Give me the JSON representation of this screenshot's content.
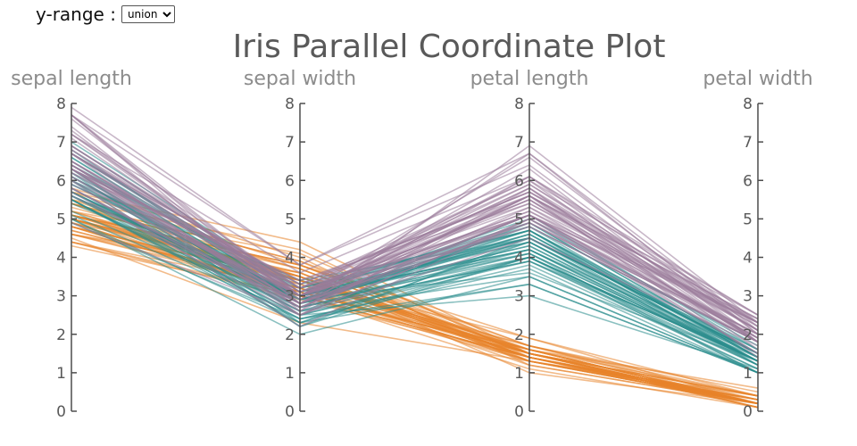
{
  "controls": {
    "label": "y-range :",
    "select_value": "union",
    "options": [
      "union"
    ]
  },
  "colors": {
    "setosa": "#e8832a",
    "versicolor": "#2a8c8c",
    "virginica": "#9b7b9b",
    "axis": "#4d4d4d"
  },
  "chart_data": {
    "type": "parallel-coordinates",
    "title": "Iris Parallel Coordinate Plot",
    "axes": [
      "sepal length",
      "sepal width",
      "petal length",
      "petal width"
    ],
    "ylim": [
      0,
      8
    ],
    "ticks": [
      0,
      1,
      2,
      3,
      4,
      5,
      6,
      7,
      8
    ],
    "series": [
      {
        "values": [
          [
            5.1,
            3.5,
            1.4,
            0.2
          ],
          [
            4.9,
            3.0,
            1.4,
            0.2
          ],
          [
            4.7,
            3.2,
            1.3,
            0.2
          ],
          [
            4.6,
            3.1,
            1.5,
            0.2
          ],
          [
            5.0,
            3.6,
            1.4,
            0.2
          ],
          [
            5.4,
            3.9,
            1.7,
            0.4
          ],
          [
            4.6,
            3.4,
            1.4,
            0.3
          ],
          [
            5.0,
            3.4,
            1.5,
            0.2
          ],
          [
            4.4,
            2.9,
            1.4,
            0.2
          ],
          [
            4.9,
            3.1,
            1.5,
            0.1
          ],
          [
            5.4,
            3.7,
            1.5,
            0.2
          ],
          [
            4.8,
            3.4,
            1.6,
            0.2
          ],
          [
            4.8,
            3.0,
            1.4,
            0.1
          ],
          [
            4.3,
            3.0,
            1.1,
            0.1
          ],
          [
            5.8,
            4.0,
            1.2,
            0.2
          ],
          [
            5.7,
            4.4,
            1.5,
            0.4
          ],
          [
            5.4,
            3.9,
            1.3,
            0.4
          ],
          [
            5.1,
            3.5,
            1.4,
            0.3
          ],
          [
            5.7,
            3.8,
            1.7,
            0.3
          ],
          [
            5.1,
            3.8,
            1.5,
            0.3
          ],
          [
            5.4,
            3.4,
            1.7,
            0.2
          ],
          [
            5.1,
            3.7,
            1.5,
            0.4
          ],
          [
            4.6,
            3.6,
            1.0,
            0.2
          ],
          [
            5.1,
            3.3,
            1.7,
            0.5
          ],
          [
            4.8,
            3.4,
            1.9,
            0.2
          ],
          [
            5.0,
            3.0,
            1.6,
            0.2
          ],
          [
            5.0,
            3.4,
            1.6,
            0.4
          ],
          [
            5.2,
            3.5,
            1.5,
            0.2
          ],
          [
            5.2,
            3.4,
            1.4,
            0.2
          ],
          [
            4.7,
            3.2,
            1.6,
            0.2
          ],
          [
            4.8,
            3.1,
            1.6,
            0.2
          ],
          [
            5.4,
            3.4,
            1.5,
            0.4
          ],
          [
            5.2,
            4.1,
            1.5,
            0.1
          ],
          [
            5.5,
            4.2,
            1.4,
            0.2
          ],
          [
            4.9,
            3.1,
            1.5,
            0.2
          ],
          [
            5.0,
            3.2,
            1.2,
            0.2
          ],
          [
            5.5,
            3.5,
            1.3,
            0.2
          ],
          [
            4.9,
            3.6,
            1.4,
            0.1
          ],
          [
            4.4,
            3.0,
            1.3,
            0.2
          ],
          [
            5.1,
            3.4,
            1.5,
            0.2
          ],
          [
            5.0,
            3.5,
            1.3,
            0.3
          ],
          [
            4.5,
            2.3,
            1.3,
            0.3
          ],
          [
            4.4,
            3.2,
            1.3,
            0.2
          ],
          [
            5.0,
            3.5,
            1.6,
            0.6
          ],
          [
            5.1,
            3.8,
            1.9,
            0.4
          ],
          [
            4.8,
            3.0,
            1.4,
            0.3
          ],
          [
            5.1,
            3.8,
            1.6,
            0.2
          ],
          [
            4.6,
            3.2,
            1.4,
            0.2
          ],
          [
            5.3,
            3.7,
            1.5,
            0.2
          ],
          [
            5.0,
            3.3,
            1.4,
            0.2
          ]
        ]
      },
      {
        "values": [
          [
            7.0,
            3.2,
            4.7,
            1.4
          ],
          [
            6.4,
            3.2,
            4.5,
            1.5
          ],
          [
            6.9,
            3.1,
            4.9,
            1.5
          ],
          [
            5.5,
            2.3,
            4.0,
            1.3
          ],
          [
            6.5,
            2.8,
            4.6,
            1.5
          ],
          [
            5.7,
            2.8,
            4.5,
            1.3
          ],
          [
            6.3,
            3.3,
            4.7,
            1.6
          ],
          [
            4.9,
            2.4,
            3.3,
            1.0
          ],
          [
            6.6,
            2.9,
            4.6,
            1.3
          ],
          [
            5.2,
            2.7,
            3.9,
            1.4
          ],
          [
            5.0,
            2.0,
            3.5,
            1.0
          ],
          [
            5.9,
            3.0,
            4.2,
            1.5
          ],
          [
            6.0,
            2.2,
            4.0,
            1.0
          ],
          [
            6.1,
            2.9,
            4.7,
            1.4
          ],
          [
            5.6,
            2.9,
            3.6,
            1.3
          ],
          [
            6.7,
            3.1,
            4.4,
            1.4
          ],
          [
            5.6,
            3.0,
            4.5,
            1.5
          ],
          [
            5.8,
            2.7,
            4.1,
            1.0
          ],
          [
            6.2,
            2.2,
            4.5,
            1.5
          ],
          [
            5.6,
            2.5,
            3.9,
            1.1
          ],
          [
            5.9,
            3.2,
            4.8,
            1.8
          ],
          [
            6.1,
            2.8,
            4.0,
            1.3
          ],
          [
            6.3,
            2.5,
            4.9,
            1.5
          ],
          [
            6.1,
            2.8,
            4.7,
            1.2
          ],
          [
            6.4,
            2.9,
            4.3,
            1.3
          ],
          [
            6.6,
            3.0,
            4.4,
            1.4
          ],
          [
            6.8,
            2.8,
            4.8,
            1.4
          ],
          [
            6.7,
            3.0,
            5.0,
            1.7
          ],
          [
            6.0,
            2.9,
            4.5,
            1.5
          ],
          [
            5.7,
            2.6,
            3.5,
            1.0
          ],
          [
            5.5,
            2.4,
            3.8,
            1.1
          ],
          [
            5.5,
            2.4,
            3.7,
            1.0
          ],
          [
            5.8,
            2.7,
            3.9,
            1.2
          ],
          [
            6.0,
            2.7,
            5.1,
            1.6
          ],
          [
            5.4,
            3.0,
            4.5,
            1.5
          ],
          [
            6.0,
            3.4,
            4.5,
            1.6
          ],
          [
            6.7,
            3.1,
            4.7,
            1.5
          ],
          [
            6.3,
            2.3,
            4.4,
            1.3
          ],
          [
            5.6,
            3.0,
            4.1,
            1.3
          ],
          [
            5.5,
            2.5,
            4.0,
            1.3
          ],
          [
            5.5,
            2.6,
            4.4,
            1.2
          ],
          [
            6.1,
            3.0,
            4.6,
            1.4
          ],
          [
            5.8,
            2.6,
            4.0,
            1.2
          ],
          [
            5.0,
            2.3,
            3.3,
            1.0
          ],
          [
            5.6,
            2.7,
            4.2,
            1.3
          ],
          [
            5.7,
            3.0,
            4.2,
            1.2
          ],
          [
            5.7,
            2.9,
            4.2,
            1.3
          ],
          [
            6.2,
            2.9,
            4.3,
            1.3
          ],
          [
            5.1,
            2.5,
            3.0,
            1.1
          ],
          [
            5.7,
            2.8,
            4.1,
            1.3
          ]
        ]
      },
      {
        "values": [
          [
            6.3,
            3.3,
            6.0,
            2.5
          ],
          [
            5.8,
            2.7,
            5.1,
            1.9
          ],
          [
            7.1,
            3.0,
            5.9,
            2.1
          ],
          [
            6.3,
            2.9,
            5.6,
            1.8
          ],
          [
            6.5,
            3.0,
            5.8,
            2.2
          ],
          [
            7.6,
            3.0,
            6.6,
            2.1
          ],
          [
            4.9,
            2.5,
            4.5,
            1.7
          ],
          [
            7.3,
            2.9,
            6.3,
            1.8
          ],
          [
            6.7,
            2.5,
            5.8,
            1.8
          ],
          [
            7.2,
            3.6,
            6.1,
            2.5
          ],
          [
            6.5,
            3.2,
            5.1,
            2.0
          ],
          [
            6.4,
            2.7,
            5.3,
            1.9
          ],
          [
            6.8,
            3.0,
            5.5,
            2.1
          ],
          [
            5.7,
            2.5,
            5.0,
            2.0
          ],
          [
            5.8,
            2.8,
            5.1,
            2.4
          ],
          [
            6.4,
            3.2,
            5.3,
            2.3
          ],
          [
            6.5,
            3.0,
            5.5,
            1.8
          ],
          [
            7.7,
            3.8,
            6.7,
            2.2
          ],
          [
            7.7,
            2.6,
            6.9,
            2.3
          ],
          [
            6.0,
            2.2,
            5.0,
            1.5
          ],
          [
            6.9,
            3.2,
            5.7,
            2.3
          ],
          [
            5.6,
            2.8,
            4.9,
            2.0
          ],
          [
            7.7,
            2.8,
            6.7,
            2.0
          ],
          [
            6.3,
            2.7,
            4.9,
            1.8
          ],
          [
            6.7,
            3.3,
            5.7,
            2.1
          ],
          [
            7.2,
            3.2,
            6.0,
            1.8
          ],
          [
            6.2,
            2.8,
            4.8,
            1.8
          ],
          [
            6.1,
            3.0,
            4.9,
            1.8
          ],
          [
            6.4,
            2.8,
            5.6,
            2.1
          ],
          [
            7.2,
            3.0,
            5.8,
            1.6
          ],
          [
            7.4,
            2.8,
            6.1,
            1.9
          ],
          [
            7.9,
            3.8,
            6.4,
            2.0
          ],
          [
            6.4,
            2.8,
            5.6,
            2.2
          ],
          [
            6.3,
            2.8,
            5.1,
            1.5
          ],
          [
            6.1,
            2.6,
            5.6,
            1.4
          ],
          [
            7.7,
            3.0,
            6.1,
            2.3
          ],
          [
            6.3,
            3.4,
            5.6,
            2.4
          ],
          [
            6.4,
            3.1,
            5.5,
            1.8
          ],
          [
            6.0,
            3.0,
            4.8,
            1.8
          ],
          [
            6.9,
            3.1,
            5.4,
            2.1
          ],
          [
            6.7,
            3.1,
            5.6,
            2.4
          ],
          [
            6.9,
            3.1,
            5.1,
            2.3
          ],
          [
            5.8,
            2.7,
            5.1,
            1.9
          ],
          [
            6.8,
            3.2,
            5.9,
            2.3
          ],
          [
            6.7,
            3.3,
            5.7,
            2.5
          ],
          [
            6.7,
            3.0,
            5.2,
            2.3
          ],
          [
            6.3,
            2.5,
            5.0,
            1.9
          ],
          [
            6.5,
            3.0,
            5.2,
            2.0
          ],
          [
            6.2,
            3.4,
            5.4,
            2.3
          ],
          [
            5.9,
            3.0,
            5.1,
            1.8
          ]
        ]
      }
    ]
  }
}
